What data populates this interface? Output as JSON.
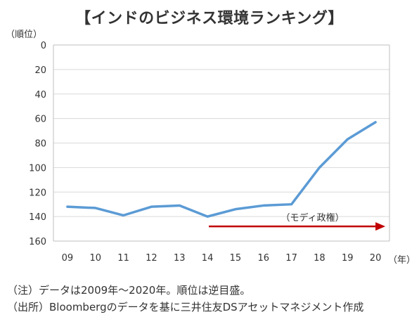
{
  "title": "【インドのビジネス環境ランキング】",
  "y_unit": "（順位）",
  "x_unit": "（年）",
  "notes": [
    "（注）データは2009年～2020年。順位は逆目盛。",
    "（出所）Bloombergのデータを基に三井住友DSアセットマネジメント作成"
  ],
  "chart_data": {
    "type": "line",
    "title": "【インドのビジネス環境ランキング】",
    "categories": [
      "09",
      "10",
      "11",
      "12",
      "13",
      "14",
      "15",
      "16",
      "17",
      "18",
      "19",
      "20"
    ],
    "series": [
      {
        "values": [
          132,
          133,
          139,
          132,
          131,
          140,
          134,
          131,
          130,
          100,
          77,
          63
        ]
      }
    ],
    "ylim": [
      0,
      160
    ],
    "y_inverted": true,
    "y_ticks": [
      0,
      20,
      40,
      60,
      80,
      100,
      120,
      140,
      160
    ],
    "grid": true,
    "line_color": "#5b9bd5",
    "annotation": {
      "text": "（モディ政権）",
      "from_category": "14",
      "to_category": "20",
      "y": 148,
      "color": "#c00000"
    }
  }
}
